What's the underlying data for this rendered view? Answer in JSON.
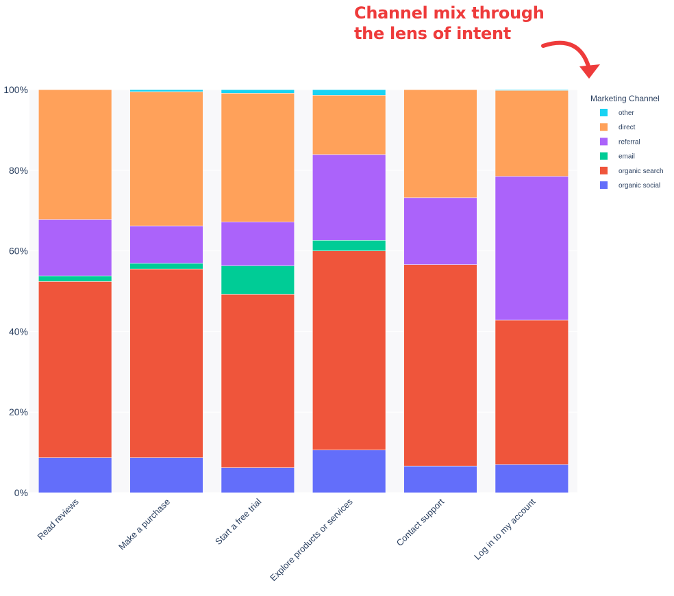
{
  "annotation": {
    "line1": "Channel mix through",
    "line2": "the lens of intent",
    "color": "#ee3b3b"
  },
  "chart_data": {
    "type": "bar",
    "stacked": true,
    "categories": [
      "Read reviews",
      "Make a purchase",
      "Start a free trial",
      "Explore products or services",
      "Contact support",
      "Log in to my account"
    ],
    "series": [
      {
        "name": "organic social",
        "color": "#636efa",
        "values": [
          8.7,
          8.7,
          6.2,
          10.6,
          6.6,
          7.0
        ]
      },
      {
        "name": "organic search",
        "color": "#ef553b",
        "values": [
          43.7,
          46.8,
          43.0,
          49.4,
          50.0,
          35.8
        ]
      },
      {
        "name": "email",
        "color": "#00cc96",
        "values": [
          1.4,
          1.4,
          7.1,
          2.6,
          0.0,
          0.0
        ]
      },
      {
        "name": "referral",
        "color": "#ab63fa",
        "values": [
          14.0,
          9.3,
          10.9,
          21.3,
          16.6,
          35.7
        ]
      },
      {
        "name": "direct",
        "color": "#ffa15a",
        "values": [
          32.2,
          33.3,
          31.9,
          14.7,
          26.8,
          21.3
        ]
      },
      {
        "name": "other",
        "color": "#19d3f3",
        "values": [
          0.0,
          0.5,
          0.9,
          1.4,
          0.0,
          0.2
        ]
      }
    ],
    "ylim": [
      0,
      100
    ],
    "yticks": [
      "0%",
      "20%",
      "40%",
      "60%",
      "80%",
      "100%"
    ],
    "legend_title": "Marketing Channel",
    "legend_order": [
      "other",
      "direct",
      "referral",
      "email",
      "organic search",
      "organic social"
    ],
    "legend_position": "right",
    "grid": true,
    "plot_bg": "#f8f8fa"
  }
}
